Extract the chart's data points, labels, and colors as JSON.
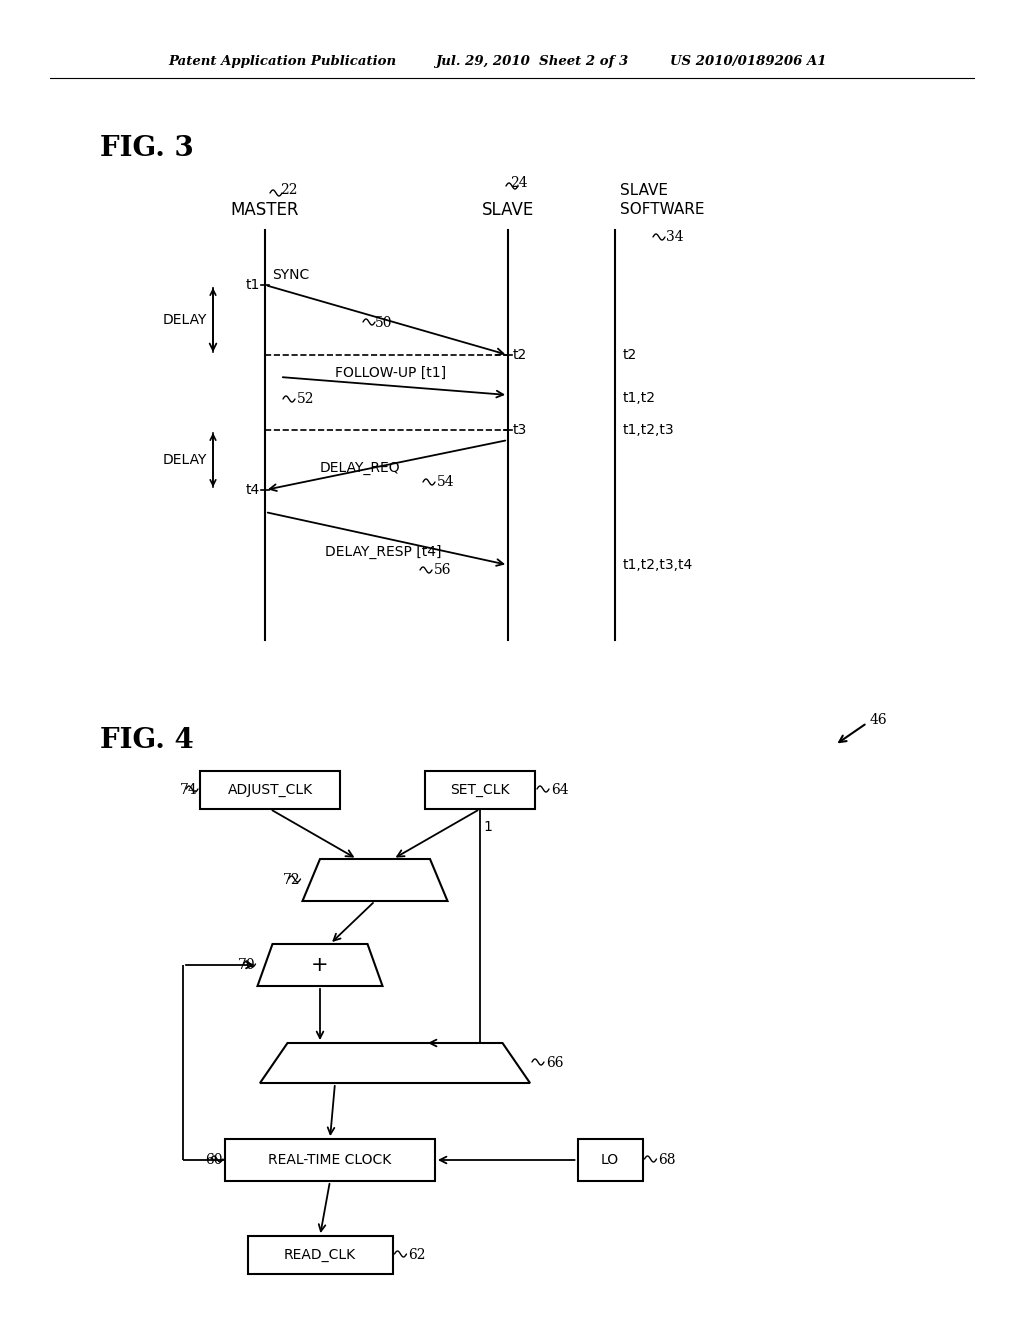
{
  "bg_color": "#ffffff",
  "header_line1": "Patent Application Publication",
  "header_line2": "Jul. 29, 2010  Sheet 2 of 3",
  "header_line3": "US 2010/0189206 A1",
  "fig3_title": "FIG. 3",
  "fig4_title": "FIG. 4",
  "fig3_label_22": "22",
  "fig3_label_24": "24",
  "fig3_label_34": "34",
  "fig3_label_46": "46",
  "fig3_label_50": "50",
  "fig3_label_52": "52",
  "fig3_label_54": "54",
  "fig3_label_56": "56",
  "fig3_master": "MASTER",
  "fig3_slave": "SLAVE",
  "fig3_slave_software": "SLAVE\nSOFTWARE",
  "fig3_delay1": "DELAY",
  "fig3_delay2": "DELAY",
  "fig3_sync": "SYNC",
  "fig3_follow_up": "FOLLOW-UP [t1]",
  "fig3_delay_req": "DELAY_REQ",
  "fig3_delay_resp": "DELAY_RESP [t4]",
  "fig4_label_60": "60",
  "fig4_label_62": "62",
  "fig4_label_64": "64",
  "fig4_label_66": "66",
  "fig4_label_68": "68",
  "fig4_label_70": "70",
  "fig4_label_72": "72",
  "fig4_label_74": "74",
  "fig4_adjust_clk": "ADJUST_CLK",
  "fig4_set_clk": "SET_CLK",
  "fig4_rtc": "REAL-TIME CLOCK",
  "fig4_read_clk": "READ_CLK",
  "fig4_lo": "LO",
  "fig4_plus": "+"
}
